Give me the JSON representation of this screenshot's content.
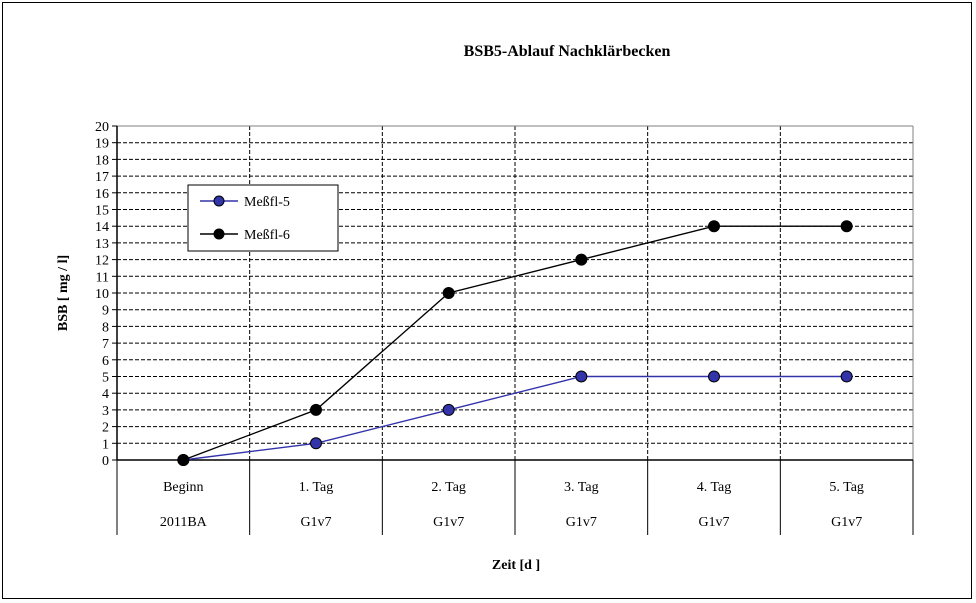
{
  "chart_data": {
    "type": "line",
    "title": "BSB5-Ablauf Nachklärbecken",
    "xlabel": "Zeit [d ]",
    "ylabel": "BSB [ mg / l]",
    "categories": [
      [
        "Beginn",
        "2011BA"
      ],
      [
        "1. Tag",
        "G1v7"
      ],
      [
        "2. Tag",
        "G1v7"
      ],
      [
        "3. Tag",
        "G1v7"
      ],
      [
        "4. Tag",
        "G1v7"
      ],
      [
        "5. Tag",
        "G1v7"
      ]
    ],
    "ylim": [
      0,
      20
    ],
    "yticks": [
      "0",
      "1",
      "2",
      "3",
      "4",
      "5",
      "6",
      "7",
      "8",
      "9",
      "10",
      "11",
      "12",
      "13",
      "14",
      "15",
      "16",
      "17",
      "18",
      "19",
      "20"
    ],
    "grid": true,
    "legend_position": "top-left",
    "series": [
      {
        "name": "Meßfl-5",
        "values": [
          0,
          1,
          3,
          5,
          5,
          5
        ],
        "line_color": "#3333aa",
        "marker_color": "#3333aa"
      },
      {
        "name": "Meßfl-6",
        "values": [
          0,
          3,
          10,
          12,
          14,
          14
        ],
        "line_color": "#000000",
        "marker_color": "#000000"
      }
    ]
  }
}
